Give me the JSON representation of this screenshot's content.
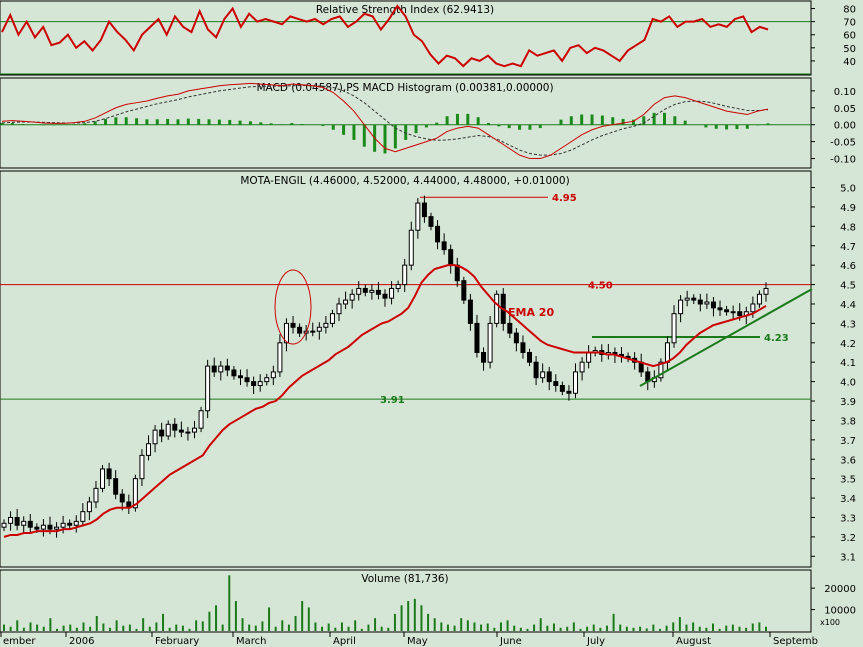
{
  "colors": {
    "background": "#d6e6d6",
    "price_line": "#cc0000",
    "rsi_line": "#cc0000",
    "ema_line": "#cc0000",
    "macd_line": "#cc0000",
    "signal_line": "#333333",
    "histogram": "#1a8a1a",
    "support_line": "#1a7a1a",
    "resistance_line": "#cc0000",
    "candle_up": "#ffffff",
    "candle_down": "#000000",
    "grid": "#1a7a1a",
    "volume_bar": "#1a7a1a"
  },
  "chart_data": [
    {
      "type": "line",
      "panel": "rsi",
      "title": "Relative Strength Index (62.9413)",
      "ylim": [
        30,
        85
      ],
      "yticks": [
        40,
        50,
        60,
        70,
        80
      ],
      "reference_lines": [
        70,
        30
      ],
      "series": [
        {
          "values": [
            62,
            75,
            60,
            70,
            58,
            66,
            52,
            54,
            60,
            50,
            55,
            48,
            56,
            70,
            62,
            56,
            48,
            60,
            66,
            72,
            60,
            74,
            66,
            62,
            78,
            64,
            58,
            72,
            80,
            66,
            76,
            70,
            72,
            70,
            68,
            74,
            72,
            70,
            72,
            68,
            72,
            74,
            66,
            70,
            76,
            74,
            64,
            72,
            82,
            74,
            60,
            55,
            45,
            38,
            44,
            42,
            36,
            42,
            40,
            44,
            38,
            36,
            38,
            36,
            48,
            44,
            46,
            48,
            40,
            50,
            52,
            46,
            50,
            48,
            44,
            40,
            48,
            52,
            56,
            72,
            70,
            74,
            66,
            70,
            70,
            72,
            66,
            68,
            66,
            72,
            74,
            62,
            66,
            64
          ]
        }
      ]
    },
    {
      "type": "line",
      "panel": "macd",
      "title": "MACD (0.04587),PS MACD Histogram (0.00381,0.00000)",
      "ylim": [
        -0.125,
        0.135
      ],
      "yticks": [
        -0.1,
        -0.05,
        0.0,
        0.05,
        0.1
      ],
      "series": [
        {
          "values": [
            0.01,
            0.012,
            0.01,
            0.008,
            0.005,
            0.004,
            0.004,
            0.006,
            0.01,
            0.02,
            0.035,
            0.05,
            0.06,
            0.065,
            0.07,
            0.078,
            0.085,
            0.09,
            0.1,
            0.105,
            0.11,
            0.115,
            0.118,
            0.12,
            0.122,
            0.12,
            0.118,
            0.115,
            0.12,
            0.118,
            0.115,
            0.11,
            0.095,
            0.07,
            0.04,
            0.0,
            -0.04,
            -0.07,
            -0.08,
            -0.07,
            -0.06,
            -0.05,
            -0.04,
            -0.02,
            -0.01,
            -0.005,
            -0.01,
            -0.03,
            -0.05,
            -0.07,
            -0.09,
            -0.1,
            -0.1,
            -0.09,
            -0.07,
            -0.05,
            -0.03,
            -0.015,
            -0.005,
            0.0,
            0.005,
            0.01,
            0.03,
            0.06,
            0.08,
            0.085,
            0.08,
            0.07,
            0.06,
            0.05,
            0.04,
            0.035,
            0.03,
            0.04,
            0.046
          ]
        },
        {
          "values": [
            0.005,
            0.007,
            0.008,
            0.008,
            0.007,
            0.006,
            0.005,
            0.005,
            0.006,
            0.01,
            0.018,
            0.028,
            0.038,
            0.046,
            0.054,
            0.062,
            0.068,
            0.074,
            0.082,
            0.088,
            0.094,
            0.1,
            0.104,
            0.108,
            0.112,
            0.113,
            0.114,
            0.114,
            0.115,
            0.116,
            0.115,
            0.114,
            0.11,
            0.1,
            0.085,
            0.065,
            0.04,
            0.015,
            -0.01,
            -0.025,
            -0.035,
            -0.042,
            -0.046,
            -0.045,
            -0.042,
            -0.037,
            -0.032,
            -0.035,
            -0.045,
            -0.06,
            -0.075,
            -0.085,
            -0.09,
            -0.09,
            -0.085,
            -0.075,
            -0.06,
            -0.045,
            -0.032,
            -0.022,
            -0.012,
            -0.005,
            0.005,
            0.025,
            0.045,
            0.06,
            0.068,
            0.07,
            0.068,
            0.062,
            0.054,
            0.048,
            0.042,
            0.042,
            0.044
          ]
        },
        {
          "values": [
            0.005,
            0.005,
            0.002,
            0.0,
            -0.002,
            -0.002,
            -0.001,
            0.001,
            0.004,
            0.01,
            0.017,
            0.022,
            0.022,
            0.019,
            0.016,
            0.016,
            0.017,
            0.016,
            0.018,
            0.017,
            0.016,
            0.015,
            0.014,
            0.012,
            0.01,
            0.007,
            0.004,
            0.001,
            0.005,
            0.002,
            0.0,
            -0.004,
            -0.015,
            -0.03,
            -0.045,
            -0.065,
            -0.08,
            -0.085,
            -0.07,
            -0.045,
            -0.025,
            -0.008,
            0.006,
            0.025,
            0.032,
            0.032,
            0.022,
            0.005,
            -0.005,
            -0.01,
            -0.015,
            -0.015,
            -0.01,
            0.0,
            0.015,
            0.025,
            0.03,
            0.03,
            0.027,
            0.022,
            0.017,
            0.015,
            0.025,
            0.035,
            0.035,
            0.025,
            0.012,
            0.0,
            -0.008,
            -0.012,
            -0.014,
            -0.013,
            -0.012,
            -0.002,
            0.004
          ]
        }
      ]
    },
    {
      "type": "candlestick",
      "panel": "price",
      "title": "MOTA-ENGIL (4.46000, 4.52000, 4.44000, 4.48000, +0.01000)",
      "ylim": [
        3.05,
        5.08
      ],
      "yticks": [
        3.1,
        3.2,
        3.3,
        3.4,
        3.5,
        3.6,
        3.7,
        3.8,
        3.9,
        4.0,
        4.1,
        4.2,
        4.3,
        4.4,
        4.5,
        4.6,
        4.7,
        4.8,
        4.9,
        5.0
      ],
      "close": [
        3.27,
        3.3,
        3.26,
        3.28,
        3.25,
        3.24,
        3.26,
        3.24,
        3.25,
        3.27,
        3.26,
        3.28,
        3.33,
        3.38,
        3.45,
        3.55,
        3.5,
        3.42,
        3.38,
        3.35,
        3.5,
        3.62,
        3.68,
        3.75,
        3.72,
        3.78,
        3.75,
        3.74,
        3.74,
        3.76,
        3.85,
        4.08,
        4.05,
        4.08,
        4.06,
        4.03,
        4.02,
        4.0,
        3.98,
        4.0,
        4.02,
        4.05,
        4.2,
        4.3,
        4.28,
        4.25,
        4.26,
        4.26,
        4.28,
        4.3,
        4.35,
        4.4,
        4.42,
        4.45,
        4.48,
        4.46,
        4.47,
        4.45,
        4.43,
        4.48,
        4.5,
        4.6,
        4.78,
        4.92,
        4.85,
        4.8,
        4.72,
        4.68,
        4.6,
        4.52,
        4.42,
        4.3,
        4.15,
        4.1,
        4.3,
        4.45,
        4.3,
        4.25,
        4.2,
        4.15,
        4.1,
        4.02,
        4.05,
        4.0,
        3.98,
        3.95,
        3.94,
        4.05,
        4.1,
        4.15,
        4.16,
        4.14,
        4.15,
        4.14,
        4.13,
        4.12,
        4.1,
        4.05,
        4.0,
        4.02,
        4.1,
        4.2,
        4.35,
        4.42,
        4.43,
        4.42,
        4.4,
        4.41,
        4.38,
        4.37,
        4.36,
        4.36,
        4.34,
        4.36,
        4.4,
        4.45,
        4.48
      ],
      "series": [
        {
          "name": "EMA 20",
          "values": [
            3.2,
            3.21,
            3.21,
            3.22,
            3.22,
            3.23,
            3.23,
            3.23,
            3.23,
            3.24,
            3.24,
            3.25,
            3.26,
            3.27,
            3.29,
            3.32,
            3.34,
            3.35,
            3.35,
            3.35,
            3.37,
            3.4,
            3.43,
            3.46,
            3.49,
            3.52,
            3.54,
            3.56,
            3.58,
            3.6,
            3.62,
            3.67,
            3.71,
            3.75,
            3.78,
            3.8,
            3.82,
            3.84,
            3.86,
            3.87,
            3.89,
            3.9,
            3.93,
            3.97,
            4.0,
            4.03,
            4.05,
            4.07,
            4.09,
            4.11,
            4.14,
            4.16,
            4.18,
            4.21,
            4.24,
            4.26,
            4.28,
            4.3,
            4.31,
            4.33,
            4.35,
            4.38,
            4.44,
            4.51,
            4.55,
            4.58,
            4.59,
            4.6,
            4.6,
            4.59,
            4.57,
            4.54,
            4.49,
            4.45,
            4.41,
            4.38,
            4.36,
            4.33,
            4.3,
            4.27,
            4.24,
            4.21,
            4.19,
            4.18,
            4.17,
            4.16,
            4.15,
            4.15,
            4.15,
            4.15,
            4.15,
            4.14,
            4.14,
            4.13,
            4.12,
            4.11,
            4.1,
            4.09,
            4.08,
            4.09,
            4.1,
            4.12,
            4.15,
            4.19,
            4.22,
            4.25,
            4.27,
            4.29,
            4.3,
            4.31,
            4.32,
            4.33,
            4.34,
            4.35,
            4.37,
            4.39
          ]
        }
      ],
      "annotations": [
        {
          "text": "4.95",
          "y": 4.95
        },
        {
          "text": "4.50",
          "y": 4.5
        },
        {
          "text": "4.23",
          "y": 4.23
        },
        {
          "text": "3.91",
          "y": 3.91
        },
        {
          "text": "EMA 20"
        }
      ],
      "reference_lines": [
        4.95,
        4.5,
        4.23,
        3.91
      ]
    },
    {
      "type": "bar",
      "panel": "volume",
      "title": "Volume (81,736)",
      "unit": "x100",
      "ylim": [
        0,
        28000
      ],
      "yticks": [
        10000,
        20000
      ],
      "values": [
        3000,
        2000,
        5000,
        1500,
        4000,
        3000,
        2000,
        6000,
        1000,
        2500,
        3000,
        1500,
        4000,
        2000,
        7000,
        3500,
        1500,
        5000,
        2500,
        3000,
        1000,
        6000,
        2000,
        4000,
        8000,
        1500,
        3000,
        2500,
        1000,
        5000,
        4500,
        9000,
        12000,
        3000,
        26000,
        14000,
        6000,
        3000,
        2500,
        4500,
        11000,
        2000,
        5000,
        3000,
        7000,
        14000,
        11000,
        4000,
        2000,
        3500,
        1500,
        4000,
        2000,
        5000,
        1000,
        3000,
        6000,
        2000,
        1500,
        8000,
        12000,
        14000,
        15000,
        12000,
        8000,
        6000,
        4000,
        3000,
        2500,
        6000,
        5000,
        4000,
        3000,
        3500,
        1500,
        4000,
        5000,
        2500,
        1500,
        1000,
        3000,
        6000,
        2500,
        3500,
        1500,
        2000,
        4000,
        1000,
        2000,
        3000,
        1500,
        2500,
        8000,
        3000,
        2000,
        1500,
        2000,
        1200,
        3000,
        1000,
        2500,
        4000,
        6500,
        3000,
        4000,
        2000,
        1500,
        3500,
        1000,
        2500,
        3000,
        2000,
        1500,
        3500,
        4000,
        2000
      ]
    }
  ],
  "time_axis": {
    "labels": [
      "ember",
      "2006",
      "February",
      "March",
      "April",
      "May",
      "June",
      "July",
      "August",
      "Septemb"
    ]
  }
}
